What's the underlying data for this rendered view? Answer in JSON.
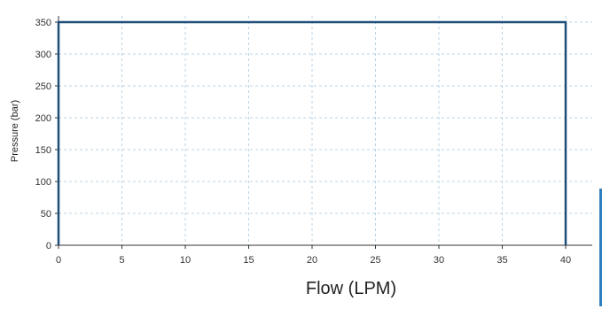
{
  "chart_data": {
    "type": "line",
    "xlabel": "Flow (LPM)",
    "ylabel": "Pressure (bar)",
    "xlim": [
      0,
      40
    ],
    "ylim": [
      0,
      350
    ],
    "x_ticks": [
      "0",
      "5",
      "10",
      "15",
      "20",
      "25",
      "30",
      "35",
      "40"
    ],
    "y_ticks": [
      "0",
      "50",
      "100",
      "150",
      "200",
      "250",
      "300",
      "350"
    ],
    "grid": true,
    "series": [
      {
        "x": [
          0,
          0,
          40,
          40
        ],
        "y": [
          0,
          350,
          350,
          0
        ],
        "color": "#1f4e79"
      }
    ]
  }
}
